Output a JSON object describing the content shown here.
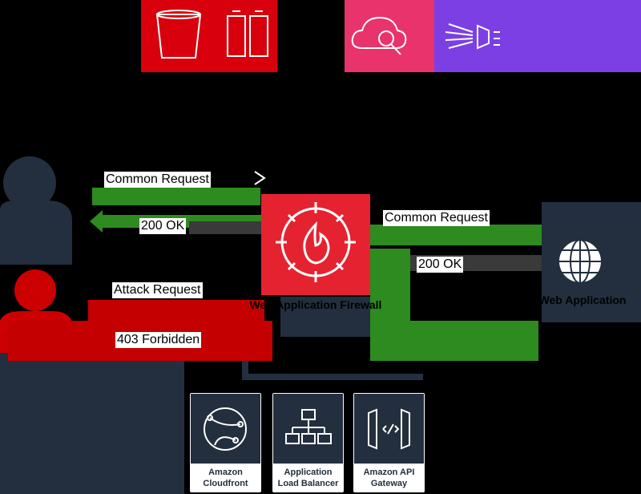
{
  "colors": {
    "background": "#000000",
    "aws_red": "#d8000c",
    "aws_red_light": "#e52230",
    "cloudwatch_pink": "#e8336c",
    "kinesis_purple": "#7b3fe4",
    "user_dark": "#232f3e",
    "attacker_red": "#cc0000",
    "flow_green": "#2e8b1f",
    "flow_red": "#c40000",
    "flow_gray": "#3a3a3a"
  },
  "services_top": [
    {
      "id": "s3",
      "caption": "S3 Bucket",
      "icon": "bucket-icon"
    },
    {
      "id": "firehose",
      "caption": "Kinesis Firehose",
      "icon": "firehose-icon"
    },
    {
      "id": "cloudwatch",
      "caption": "Cloudwatch Logs",
      "icon": "cloudwatch-icon"
    },
    {
      "id": "kinesis",
      "caption": "Kinesis Stream",
      "icon": "kinesis-icon"
    }
  ],
  "waf": {
    "caption": "Web Application Firewall",
    "icon": "firewall-icon"
  },
  "web_app": {
    "caption": "Web Application",
    "icon": "globe-icon"
  },
  "flows": {
    "common_request_left": "Common Request",
    "ok_left": "200 OK",
    "attack_request": "Attack Request",
    "forbidden": "403 Forbidden",
    "common_request_right": "Common Request",
    "ok_right": "200 OK"
  },
  "deploy_targets": [
    {
      "label_line1": "Amazon",
      "label_line2": "Cloudfront",
      "icon": "cloudfront-icon"
    },
    {
      "label_line1": "Application",
      "label_line2": "Load Balancer",
      "icon": "load-balancer-icon"
    },
    {
      "label_line1": "Amazon API",
      "label_line2": "Gateway",
      "icon": "api-gateway-icon"
    }
  ]
}
